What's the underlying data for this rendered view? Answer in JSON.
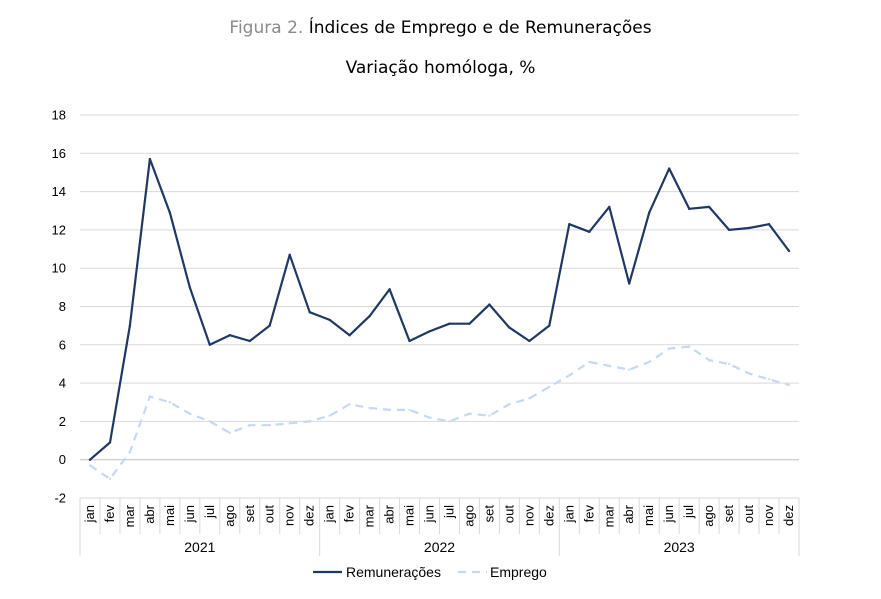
{
  "chart_data": {
    "type": "line",
    "title_prefix": "Figura 2.",
    "title": "Índices de Emprego e de Remunerações",
    "subtitle": "Variação homóloga, %",
    "ylim": [
      -2,
      18
    ],
    "yticks": [
      -2,
      0,
      2,
      4,
      6,
      8,
      10,
      12,
      14,
      16,
      18
    ],
    "categories": [
      "jan",
      "fev",
      "mar",
      "abr",
      "mai",
      "jun",
      "jul",
      "ago",
      "set",
      "out",
      "nov",
      "dez",
      "jan",
      "fev",
      "mar",
      "abr",
      "mai",
      "jun",
      "jul",
      "ago",
      "set",
      "out",
      "nov",
      "dez",
      "jan",
      "fev",
      "mar",
      "abr",
      "mai",
      "jun",
      "jul",
      "ago",
      "set",
      "out",
      "nov",
      "dez"
    ],
    "years": [
      "2021",
      "2022",
      "2023"
    ],
    "grid": true,
    "legend_position": "bottom-center",
    "series": [
      {
        "name": "Remunerações",
        "color": "#1f3864",
        "style": "solid",
        "values": [
          0.0,
          0.9,
          7.0,
          15.7,
          12.9,
          9.0,
          6.0,
          6.5,
          6.2,
          7.0,
          10.7,
          7.7,
          7.3,
          6.5,
          7.5,
          8.9,
          6.2,
          6.7,
          7.1,
          7.1,
          8.1,
          6.9,
          6.2,
          7.0,
          12.3,
          11.9,
          13.2,
          9.2,
          12.9,
          15.2,
          13.1,
          13.2,
          12.0,
          12.1,
          12.3,
          10.9
        ]
      },
      {
        "name": "Emprego",
        "color": "#c6d9f0",
        "style": "dashed",
        "values": [
          -0.3,
          -1.0,
          0.4,
          3.3,
          3.0,
          2.4,
          2.0,
          1.4,
          1.8,
          1.8,
          1.9,
          2.0,
          2.3,
          2.9,
          2.7,
          2.6,
          2.6,
          2.2,
          2.0,
          2.4,
          2.3,
          2.9,
          3.2,
          3.8,
          4.4,
          5.1,
          4.9,
          4.7,
          5.1,
          5.8,
          5.9,
          5.2,
          5.0,
          4.5,
          4.2,
          3.9
        ]
      }
    ]
  }
}
